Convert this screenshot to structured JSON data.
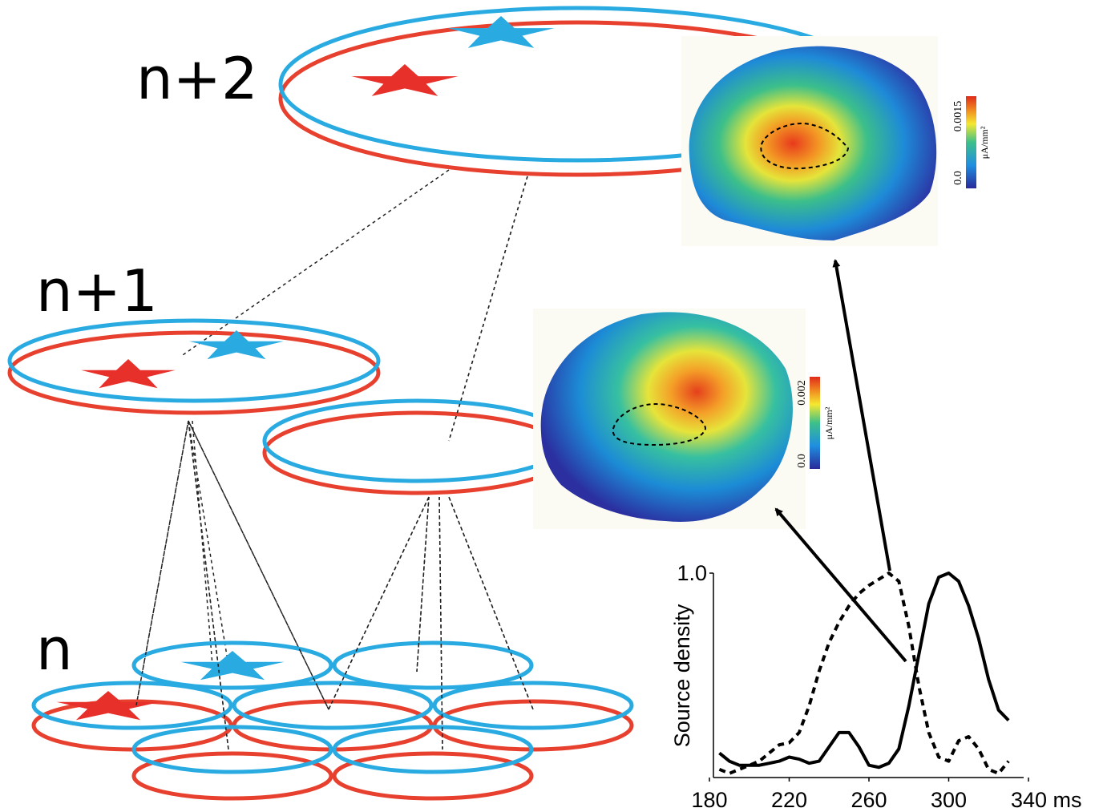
{
  "levels": [
    "n+2",
    "n+1",
    "n"
  ],
  "colorbars": [
    {
      "max": "0.0015",
      "min": "0.0",
      "unit": "μA/mm²"
    },
    {
      "max": "0.002",
      "min": "0.0",
      "unit": "μA/mm²"
    }
  ],
  "chart_data": {
    "type": "line",
    "ylabel": "Source density",
    "x": [
      185,
      190,
      195,
      200,
      205,
      210,
      215,
      220,
      225,
      230,
      235,
      240,
      245,
      250,
      255,
      260,
      265,
      270,
      275,
      280,
      285,
      290,
      295,
      300,
      305,
      310,
      315,
      320,
      325,
      330
    ],
    "series": [
      {
        "color": "#000000",
        "style": "dashed",
        "values": [
          0.04,
          0.02,
          0.04,
          0.06,
          0.08,
          0.12,
          0.16,
          0.17,
          0.22,
          0.35,
          0.52,
          0.66,
          0.76,
          0.84,
          0.9,
          0.94,
          0.97,
          1.0,
          0.96,
          0.74,
          0.45,
          0.22,
          0.1,
          0.08,
          0.18,
          0.2,
          0.14,
          0.04,
          0.02,
          0.08
        ]
      },
      {
        "color": "#000000",
        "style": "solid",
        "values": [
          0.12,
          0.08,
          0.06,
          0.06,
          0.06,
          0.07,
          0.08,
          0.1,
          0.09,
          0.07,
          0.08,
          0.15,
          0.22,
          0.22,
          0.15,
          0.06,
          0.05,
          0.07,
          0.14,
          0.35,
          0.6,
          0.85,
          0.98,
          1.0,
          0.96,
          0.84,
          0.68,
          0.48,
          0.33,
          0.28
        ]
      }
    ],
    "xlim": [
      180,
      340
    ],
    "ylim": [
      0,
      1
    ],
    "xticks": [
      180,
      220,
      260,
      300,
      {
        "value": 340,
        "label": "340 ms"
      }
    ],
    "yticks": [
      {
        "value": 1,
        "label": "1.0"
      }
    ]
  }
}
